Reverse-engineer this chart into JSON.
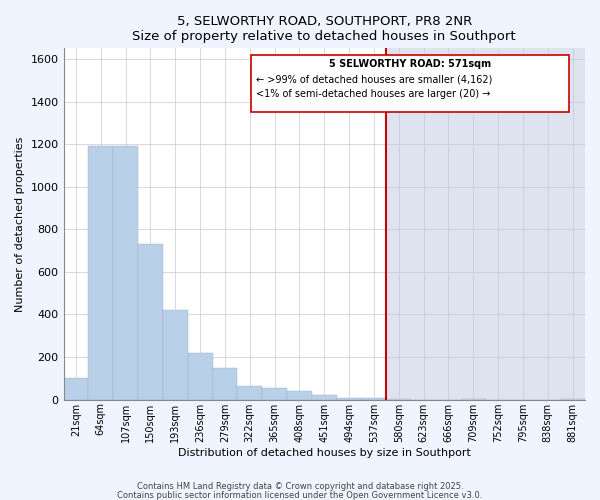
{
  "title": "5, SELWORTHY ROAD, SOUTHPORT, PR8 2NR",
  "subtitle": "Size of property relative to detached houses in Southport",
  "xlabel": "Distribution of detached houses by size in Southport",
  "ylabel": "Number of detached properties",
  "categories": [
    "21sqm",
    "64sqm",
    "107sqm",
    "150sqm",
    "193sqm",
    "236sqm",
    "279sqm",
    "322sqm",
    "365sqm",
    "408sqm",
    "451sqm",
    "494sqm",
    "537sqm",
    "580sqm",
    "623sqm",
    "666sqm",
    "709sqm",
    "752sqm",
    "795sqm",
    "838sqm",
    "881sqm"
  ],
  "values": [
    100,
    1190,
    1190,
    730,
    420,
    220,
    150,
    65,
    55,
    40,
    20,
    10,
    8,
    5,
    0,
    0,
    5,
    0,
    0,
    0,
    5
  ],
  "bar_color": "#b8d0e8",
  "bar_color_right": "#d0d8ee",
  "vline_index": 13,
  "vline_color": "#cc0000",
  "annotation_title": "5 SELWORTHY ROAD: 571sqm",
  "annotation_line1": "← >99% of detached houses are smaller (4,162)",
  "annotation_line2": "<1% of semi-detached houses are larger (20) →",
  "ylim": [
    0,
    1650
  ],
  "yticks": [
    0,
    200,
    400,
    600,
    800,
    1000,
    1200,
    1400,
    1600
  ],
  "footer1": "Contains HM Land Registry data © Crown copyright and database right 2025.",
  "footer2": "Contains public sector information licensed under the Open Government Licence v3.0.",
  "fig_bg": "#f0f4ff",
  "plot_bg_left": "#ffffff",
  "plot_bg_right": "#dde4f0"
}
